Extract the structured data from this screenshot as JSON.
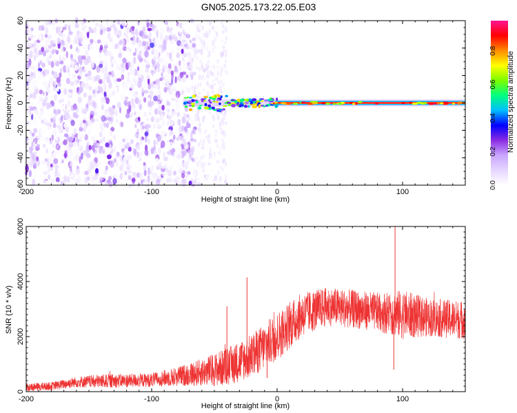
{
  "title": "GN05.2025.173.22.05.E03",
  "chart_data": [
    {
      "type": "heatmap",
      "xlabel": "Height of straight line (km)",
      "ylabel": "Frequency (Hz)",
      "xlim": [
        -200,
        150
      ],
      "ylim": [
        -60,
        60
      ],
      "x_ticks": [
        -200,
        -100,
        0,
        100
      ],
      "y_ticks": [
        -60,
        -40,
        -20,
        0,
        20,
        40,
        60
      ],
      "colorbar": {
        "label": "Normalized spectral amplitude",
        "range": [
          0,
          0.98
        ],
        "ticks": [
          0.0,
          0.2,
          0.4,
          0.6,
          0.8
        ],
        "colormap": [
          "#ffffff",
          "#e6d6ff",
          "#c9a6ff",
          "#8a2be2",
          "#0000ff",
          "#00bfff",
          "#00ff7f",
          "#7cfc00",
          "#ffff00",
          "#ff8c00",
          "#ff0000",
          "#ff1493"
        ]
      },
      "features": {
        "noise_region_x": [
          -200,
          -65
        ],
        "noise_amplitude": 0.12,
        "sparse_noise_region_x": [
          -65,
          -40
        ],
        "carrier_line_frequency_hz": 0,
        "carrier_start_x": -75,
        "carrier_amplitude": 0.8
      }
    },
    {
      "type": "line",
      "xlabel": "Height of straight line (km)",
      "ylabel": "SNR (10 * v/v)",
      "xlim": [
        -200,
        150
      ],
      "ylim": [
        0,
        6000
      ],
      "x_ticks": [
        -200,
        -100,
        0,
        100
      ],
      "y_ticks": [
        0,
        2000,
        4000,
        6000
      ],
      "series": [
        {
          "color": "#ee3333",
          "envelope_x": [
            -200,
            -180,
            -160,
            -140,
            -120,
            -100,
            -80,
            -60,
            -40,
            -20,
            0,
            20,
            40,
            60,
            80,
            100,
            120,
            150
          ],
          "envelope_center": [
            150,
            200,
            350,
            380,
            400,
            420,
            550,
            700,
            900,
            1300,
            2000,
            2800,
            3100,
            3000,
            2900,
            2800,
            2700,
            2600
          ],
          "envelope_spread": [
            150,
            150,
            200,
            250,
            250,
            250,
            350,
            500,
            700,
            800,
            900,
            800,
            700,
            700,
            700,
            900,
            700,
            700
          ],
          "spikes": [
            {
              "x": -24,
              "y": 4150
            },
            {
              "x": -40,
              "y": 3100
            },
            {
              "x": 94,
              "y": 6000
            },
            {
              "x": 93,
              "y": 800
            },
            {
              "x": -8,
              "y": 500
            }
          ]
        }
      ]
    }
  ]
}
